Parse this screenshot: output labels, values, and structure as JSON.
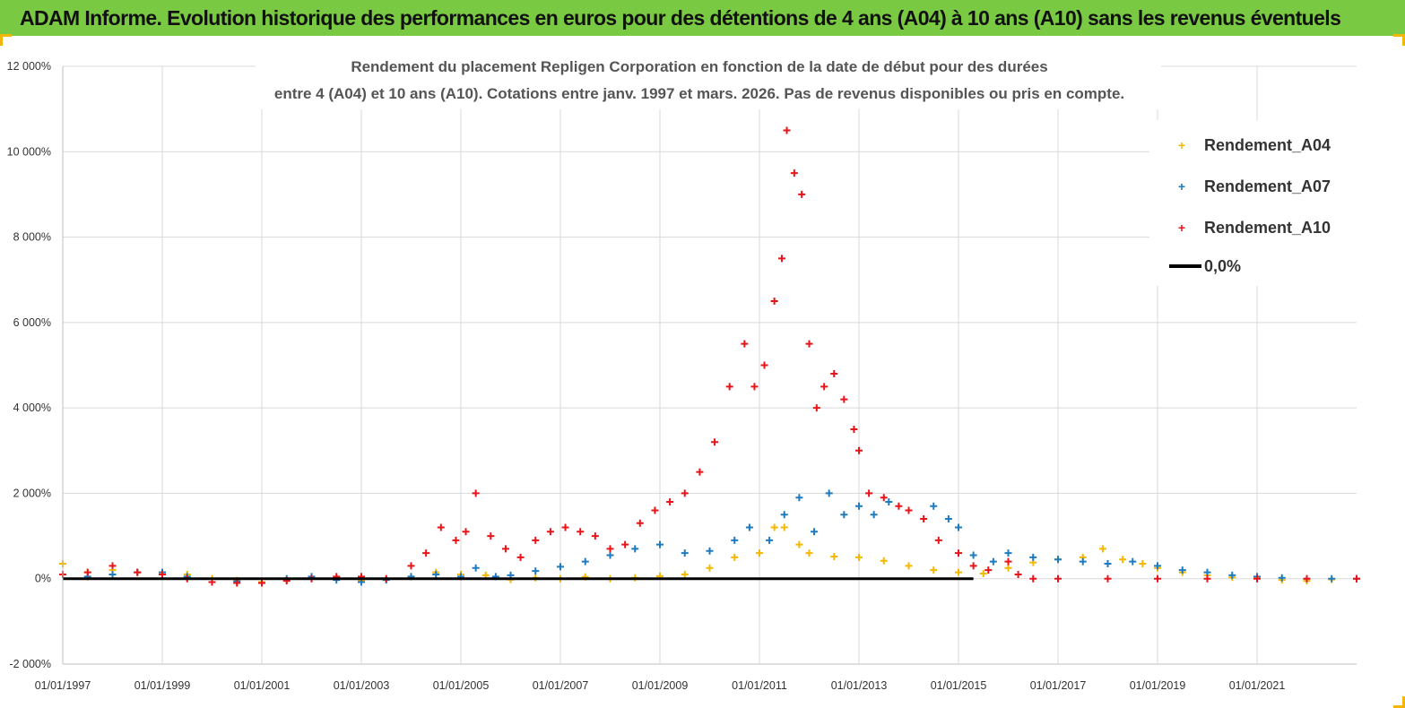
{
  "banner": {
    "title": "ADAM Informe. Evolution historique des performances en euros pour des détentions de 4 ans (A04) à 10 ans (A10) sans les revenus éventuels",
    "background": "#7ac943"
  },
  "chart_data": {
    "type": "scatter",
    "title_lines": [
      "Rendement du placement Repligen Corporation en fonction de la date de début pour des durées",
      "entre 4 (A04) et 10 ans (A10). Cotations entre janv. 1997 et mars. 2026. Pas de revenus disponibles ou pris en compte."
    ],
    "xlabel": "",
    "ylabel": "",
    "xlim": [
      1997.0,
      2023.0
    ],
    "ylim": [
      -2000,
      12000
    ],
    "x_tick_values": [
      1997,
      1999,
      2001,
      2003,
      2005,
      2007,
      2009,
      2011,
      2013,
      2015,
      2017,
      2019,
      2021
    ],
    "x_tick_labels": [
      "01/01/1997",
      "01/01/1999",
      "01/01/2001",
      "01/01/2003",
      "01/01/2005",
      "01/01/2007",
      "01/01/2009",
      "01/01/2011",
      "01/01/2013",
      "01/01/2015",
      "01/01/2017",
      "01/01/2019",
      "01/01/2021"
    ],
    "y_tick_values": [
      -2000,
      0,
      2000,
      4000,
      6000,
      8000,
      10000,
      12000
    ],
    "y_tick_labels": [
      "-2 000%",
      "0%",
      "2 000%",
      "4 000%",
      "6 000%",
      "8 000%",
      "10 000%",
      "12 000%"
    ],
    "grid": true,
    "legend_position": "top-right",
    "series": [
      {
        "name": "Rendement_A04",
        "color": "#f5b800",
        "marker": "+",
        "x": [
          1997.0,
          1997.5,
          1998.0,
          1998.5,
          1999.0,
          1999.5,
          2000.0,
          2000.5,
          2001.0,
          2001.5,
          2002.0,
          2002.5,
          2003.0,
          2003.5,
          2004.0,
          2004.5,
          2005.0,
          2005.5,
          2006.0,
          2006.5,
          2007.0,
          2007.5,
          2008.0,
          2008.5,
          2009.0,
          2009.5,
          2010.0,
          2010.5,
          2011.0,
          2011.3,
          2011.5,
          2011.8,
          2012.0,
          2012.5,
          2013.0,
          2013.5,
          2014.0,
          2014.5,
          2015.0,
          2015.5,
          2016.0,
          2016.5,
          2017.0,
          2017.5,
          2017.9,
          2018.3,
          2018.7,
          2019.0,
          2019.5,
          2020.0,
          2020.5,
          2021.0,
          2021.5,
          2022.0,
          2022.5,
          2023.0
        ],
        "y": [
          350,
          150,
          200,
          150,
          150,
          100,
          0,
          -40,
          -80,
          -30,
          0,
          20,
          -40,
          0,
          50,
          150,
          100,
          80,
          -20,
          20,
          0,
          40,
          0,
          20,
          60,
          100,
          250,
          500,
          600,
          1200,
          1200,
          800,
          600,
          520,
          500,
          420,
          300,
          200,
          150,
          120,
          250,
          380,
          450,
          500,
          700,
          450,
          350,
          250,
          150,
          80,
          30,
          10,
          -30,
          -50,
          -20,
          0
        ]
      },
      {
        "name": "Rendement_A07",
        "color": "#1f7bc0",
        "marker": "+",
        "x": [
          1997.0,
          1997.5,
          1998.0,
          1998.5,
          1999.0,
          1999.5,
          2000.0,
          2000.5,
          2001.0,
          2001.5,
          2002.0,
          2002.5,
          2003.0,
          2003.5,
          2004.0,
          2004.5,
          2005.0,
          2005.3,
          2005.7,
          2006.0,
          2006.5,
          2007.0,
          2007.5,
          2008.0,
          2008.5,
          2009.0,
          2009.5,
          2010.0,
          2010.5,
          2010.8,
          2011.2,
          2011.5,
          2011.8,
          2012.1,
          2012.4,
          2012.7,
          2013.0,
          2013.3,
          2013.6,
          2014.0,
          2014.5,
          2014.8,
          2015.0,
          2015.3,
          2015.7,
          2016.0,
          2016.5,
          2017.0,
          2017.5,
          2018.0,
          2018.5,
          2019.0,
          2019.5,
          2020.0,
          2020.5,
          2021.0,
          2021.5,
          2022.0,
          2022.5,
          2023.0
        ],
        "y": [
          100,
          50,
          100,
          150,
          150,
          50,
          -80,
          -60,
          -100,
          0,
          50,
          -30,
          -80,
          -30,
          50,
          100,
          50,
          250,
          50,
          80,
          180,
          280,
          400,
          550,
          700,
          800,
          600,
          650,
          900,
          1200,
          900,
          1500,
          1900,
          1100,
          2000,
          1500,
          1700,
          1500,
          1800,
          1600,
          1700,
          1400,
          1200,
          550,
          400,
          600,
          500,
          450,
          400,
          350,
          400,
          300,
          200,
          150,
          80,
          50,
          20,
          0,
          0,
          0
        ]
      },
      {
        "name": "Rendement_A10",
        "color": "#e8141a",
        "marker": "+",
        "x": [
          1997.0,
          1997.5,
          1998.0,
          1998.5,
          1999.0,
          1999.5,
          2000.0,
          2000.5,
          2001.0,
          2001.5,
          2002.0,
          2002.5,
          2003.0,
          2003.5,
          2004.0,
          2004.3,
          2004.6,
          2004.9,
          2005.1,
          2005.3,
          2005.6,
          2005.9,
          2006.2,
          2006.5,
          2006.8,
          2007.1,
          2007.4,
          2007.7,
          2008.0,
          2008.3,
          2008.6,
          2008.9,
          2009.2,
          2009.5,
          2009.8,
          2010.1,
          2010.4,
          2010.7,
          2010.9,
          2011.1,
          2011.3,
          2011.45,
          2011.55,
          2011.7,
          2011.85,
          2012.0,
          2012.15,
          2012.3,
          2012.5,
          2012.7,
          2012.9,
          2013.0,
          2013.2,
          2013.5,
          2013.8,
          2014.0,
          2014.3,
          2014.6,
          2015.0,
          2015.3,
          2015.6,
          2016.0,
          2016.2,
          2016.5,
          2017.0,
          2018.0,
          2019.0,
          2020.0,
          2021.0,
          2022.0,
          2023.0
        ],
        "y": [
          100,
          150,
          300,
          150,
          100,
          0,
          -80,
          -100,
          -100,
          -50,
          0,
          50,
          50,
          0,
          300,
          600,
          1200,
          900,
          1100,
          2000,
          1000,
          700,
          500,
          900,
          1100,
          1200,
          1100,
          1000,
          700,
          800,
          1300,
          1600,
          1800,
          2000,
          2500,
          3200,
          4500,
          5500,
          4500,
          5000,
          6500,
          7500,
          10500,
          9500,
          9000,
          5500,
          4000,
          4500,
          4800,
          4200,
          3500,
          3000,
          2000,
          1900,
          1700,
          1600,
          1400,
          900,
          600,
          300,
          200,
          400,
          100,
          0,
          0,
          0,
          0,
          0,
          0,
          0,
          0
        ]
      }
    ],
    "reference_line": {
      "name": "0,0%",
      "color": "#000000",
      "y": 0,
      "x_range": [
        1997.0,
        2015.3
      ]
    }
  }
}
